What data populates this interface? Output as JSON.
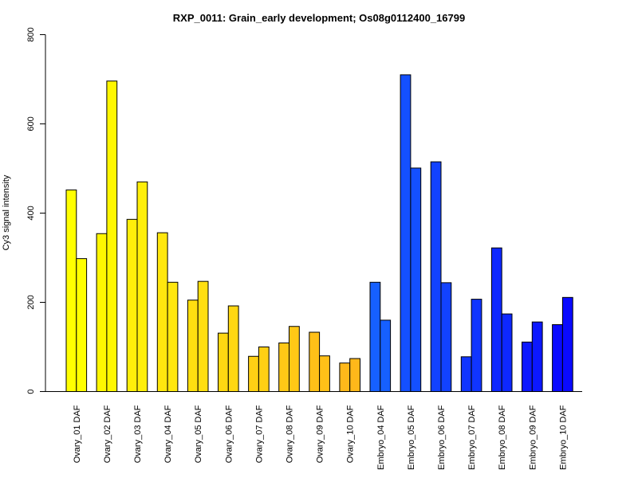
{
  "chart_data": {
    "type": "bar",
    "title": "RXP_0011: Grain_early development; Os08g0112400_16799",
    "xlabel": "",
    "ylabel": "Cy3 signal intensity",
    "ylim": [
      0,
      800
    ],
    "yticks": [
      0,
      200,
      400,
      600,
      800
    ],
    "grid": false,
    "categories": [
      "Ovary_01 DAF",
      "Ovary_02 DAF",
      "Ovary_03 DAF",
      "Ovary_04 DAF",
      "Ovary_05 DAF",
      "Ovary_06 DAF",
      "Ovary_07 DAF",
      "Ovary_08 DAF",
      "Ovary_09 DAF",
      "Ovary_10 DAF",
      "Embryo_04 DAF",
      "Embryo_05 DAF",
      "Embryo_06 DAF",
      "Embryo_07 DAF",
      "Embryo_08 DAF",
      "Embryo_09 DAF",
      "Embryo_10 DAF"
    ],
    "colors": [
      "#ffff00",
      "#fff700",
      "#ffef0a",
      "#ffe70e",
      "#ffdf10",
      "#ffd712",
      "#ffd014",
      "#ffc816",
      "#ffc018",
      "#ffb81a",
      "#1660ff",
      "#1450ff",
      "#1242ff",
      "#1035ff",
      "#0e28ff",
      "#0c18ff",
      "#0a0aff"
    ],
    "series": [
      {
        "values": [
          452,
          354,
          386,
          356,
          205,
          131,
          79,
          109,
          133,
          64,
          245,
          710,
          515,
          78,
          322,
          111,
          150
        ]
      },
      {
        "values": [
          298,
          696,
          470,
          245,
          247,
          192,
          100,
          146,
          80,
          74,
          160,
          501,
          244,
          207,
          174,
          156,
          211
        ]
      }
    ]
  }
}
